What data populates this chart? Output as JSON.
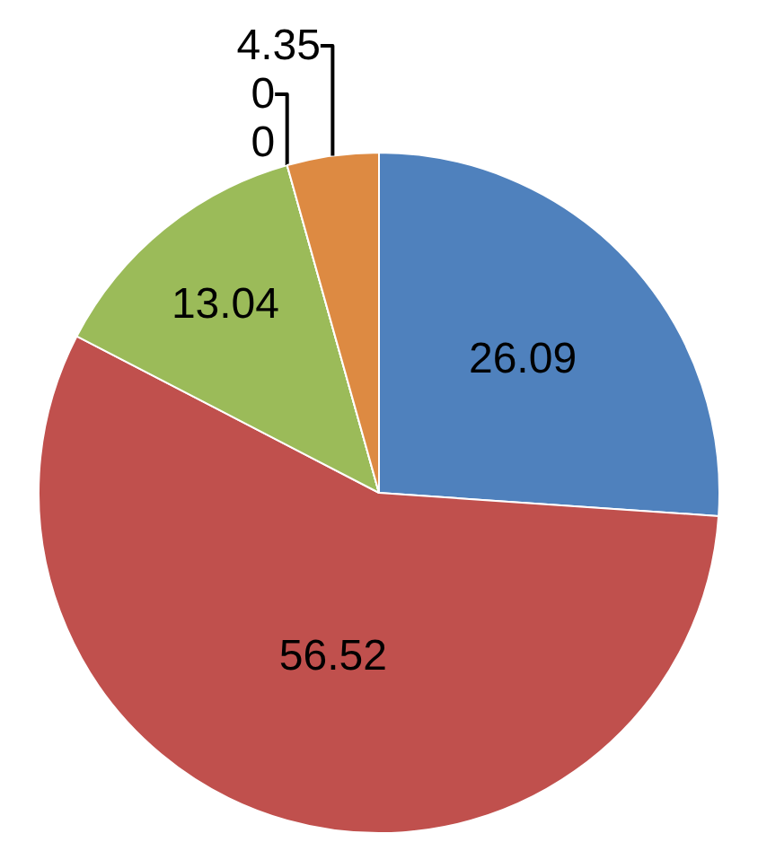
{
  "chart_data": {
    "type": "pie",
    "categories": [
      null,
      null,
      null,
      null,
      null,
      null
    ],
    "values": [
      26.09,
      56.52,
      13.04,
      0,
      0,
      4.35
    ],
    "colors": [
      "#4f81bd",
      "#c0504d",
      "#9bbb59",
      "#8064a2",
      "#4bacc6",
      "#dd8a42"
    ],
    "value_labels": [
      "26.09",
      "56.52",
      "13.04",
      "0",
      "0",
      "4.35"
    ],
    "legend": false
  }
}
